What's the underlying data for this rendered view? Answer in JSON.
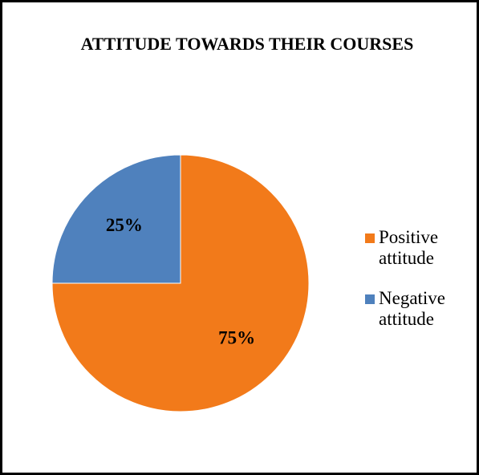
{
  "chart_data": {
    "type": "pie",
    "title": "ATTITUDE TOWARDS THEIR COURSES",
    "categories": [
      "Positive attitude",
      "Negative attitude"
    ],
    "values": [
      75,
      25
    ],
    "value_labels": [
      "75%",
      "25%"
    ],
    "colors": [
      "#f27a1a",
      "#4f81bd"
    ]
  }
}
